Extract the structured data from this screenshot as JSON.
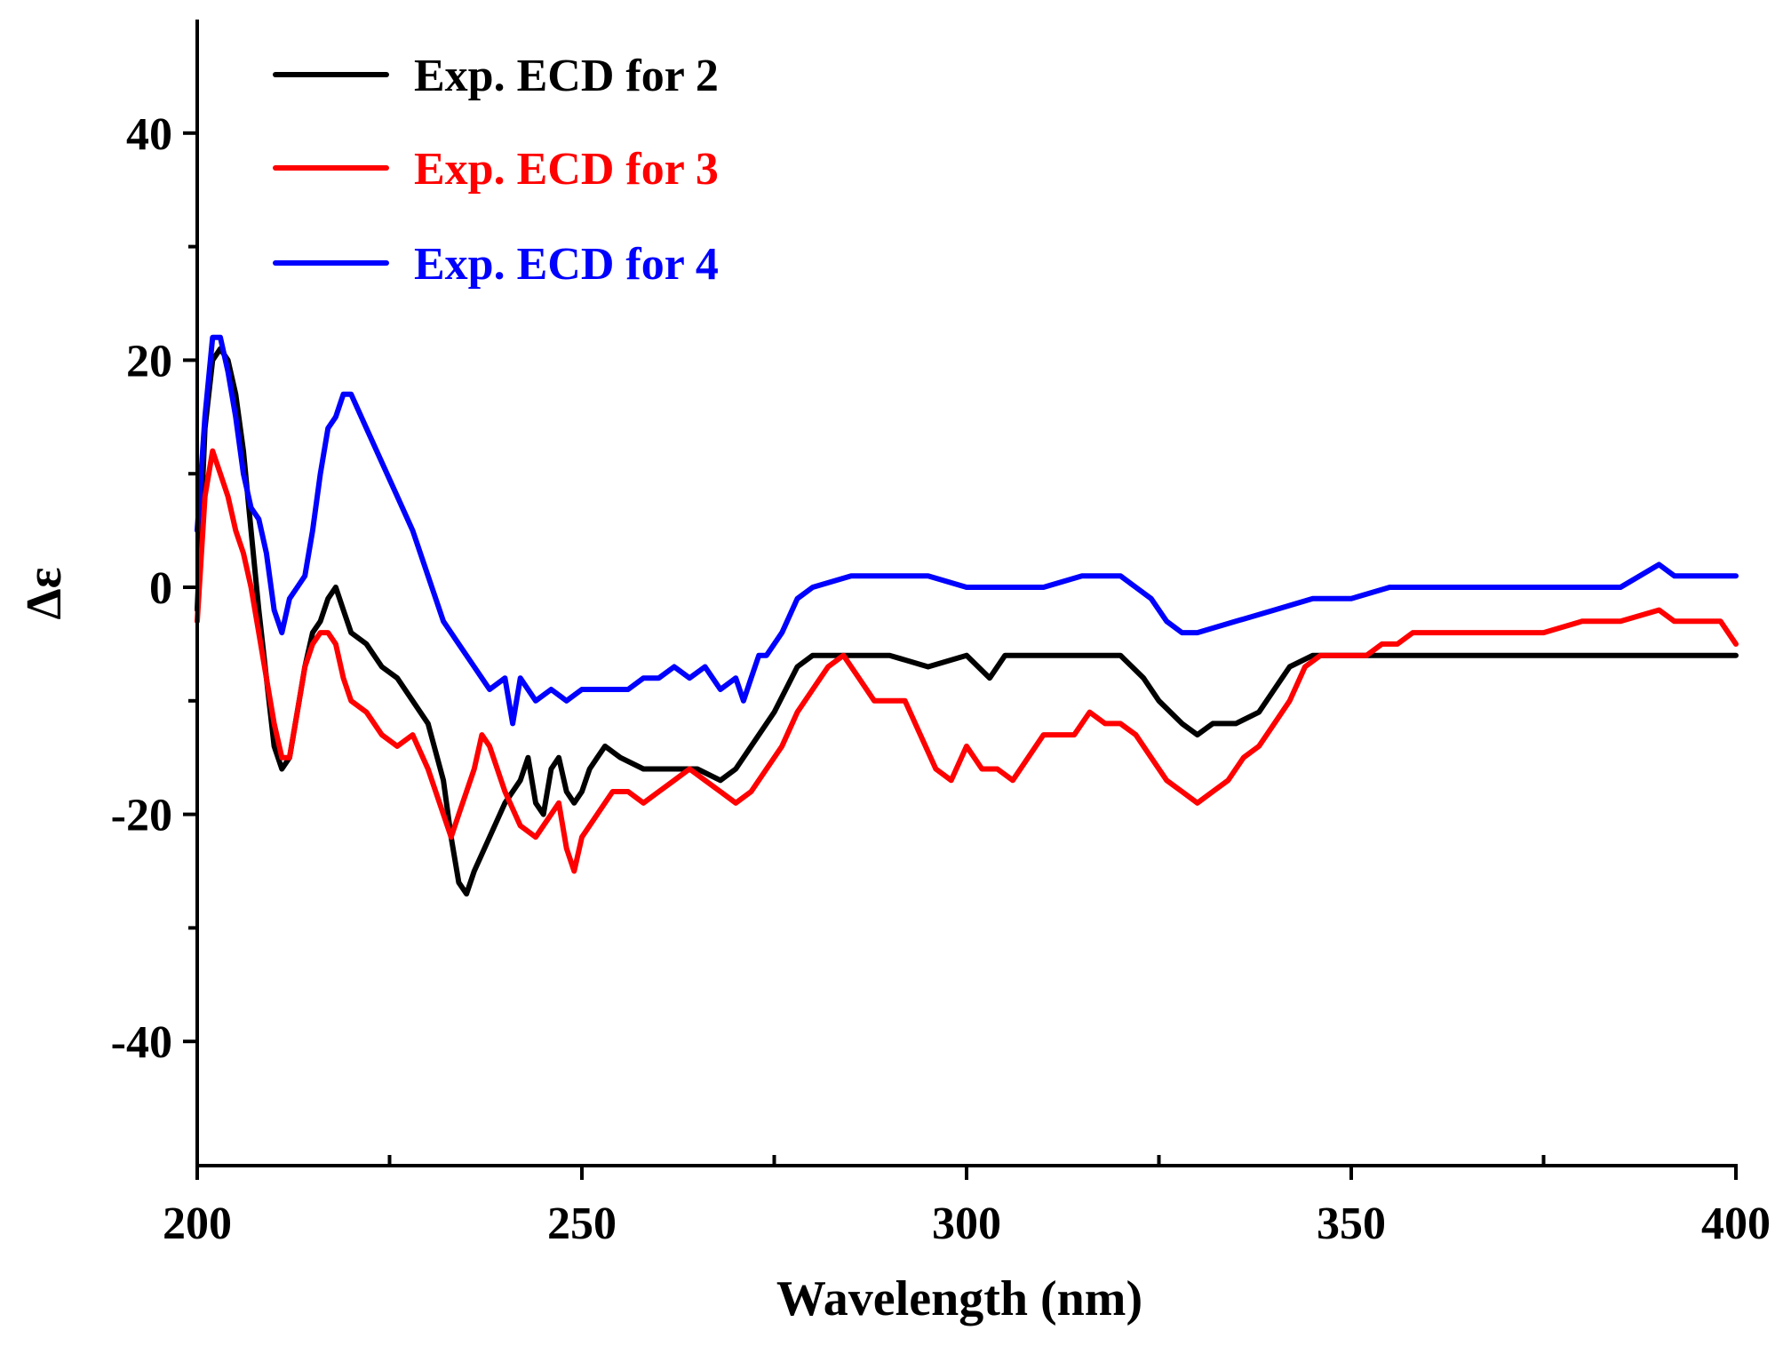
{
  "chart_data": {
    "type": "line",
    "title": "",
    "xlabel": "Wavelength (nm)",
    "ylabel": "Δε",
    "xlim": [
      200,
      400
    ],
    "ylim": [
      -50,
      50
    ],
    "xticks": [
      200,
      250,
      300,
      350,
      400
    ],
    "xticks_minor": [
      225,
      275,
      325,
      375
    ],
    "yticks": [
      -40,
      -20,
      0,
      20,
      40
    ],
    "yticks_minor": [
      -30,
      -10,
      10,
      30
    ],
    "x_tick_labels": [
      "200",
      "250",
      "300",
      "350",
      "400"
    ],
    "y_tick_labels": [
      "-40",
      "-20",
      "0",
      "20",
      "40"
    ],
    "grid": false,
    "legend_position": "top-left",
    "series": [
      {
        "name": "Exp. ECD for 2",
        "color": "#000000",
        "points": [
          [
            200,
            -2
          ],
          [
            201,
            14
          ],
          [
            202,
            20
          ],
          [
            203,
            21
          ],
          [
            204,
            20
          ],
          [
            205,
            17
          ],
          [
            206,
            12
          ],
          [
            207,
            5
          ],
          [
            208,
            -2
          ],
          [
            209,
            -8
          ],
          [
            210,
            -14
          ],
          [
            211,
            -16
          ],
          [
            212,
            -15
          ],
          [
            213,
            -11
          ],
          [
            214,
            -7
          ],
          [
            215,
            -4
          ],
          [
            216,
            -3
          ],
          [
            217,
            -1
          ],
          [
            218,
            0
          ],
          [
            219,
            -2
          ],
          [
            220,
            -4
          ],
          [
            222,
            -5
          ],
          [
            224,
            -7
          ],
          [
            226,
            -8
          ],
          [
            228,
            -10
          ],
          [
            230,
            -12
          ],
          [
            232,
            -17
          ],
          [
            233,
            -22
          ],
          [
            234,
            -26
          ],
          [
            235,
            -27
          ],
          [
            236,
            -25
          ],
          [
            238,
            -22
          ],
          [
            240,
            -19
          ],
          [
            242,
            -17
          ],
          [
            243,
            -15
          ],
          [
            244,
            -19
          ],
          [
            245,
            -20
          ],
          [
            246,
            -16
          ],
          [
            247,
            -15
          ],
          [
            248,
            -18
          ],
          [
            249,
            -19
          ],
          [
            250,
            -18
          ],
          [
            251,
            -16
          ],
          [
            252,
            -15
          ],
          [
            253,
            -14
          ],
          [
            255,
            -15
          ],
          [
            258,
            -16
          ],
          [
            260,
            -16
          ],
          [
            262,
            -16
          ],
          [
            265,
            -16
          ],
          [
            268,
            -17
          ],
          [
            270,
            -16
          ],
          [
            272,
            -14
          ],
          [
            275,
            -11
          ],
          [
            278,
            -7
          ],
          [
            280,
            -6
          ],
          [
            285,
            -6
          ],
          [
            290,
            -6
          ],
          [
            295,
            -7
          ],
          [
            300,
            -6
          ],
          [
            303,
            -8
          ],
          [
            305,
            -6
          ],
          [
            310,
            -6
          ],
          [
            315,
            -6
          ],
          [
            320,
            -6
          ],
          [
            323,
            -8
          ],
          [
            325,
            -10
          ],
          [
            328,
            -12
          ],
          [
            330,
            -13
          ],
          [
            332,
            -12
          ],
          [
            335,
            -12
          ],
          [
            338,
            -11
          ],
          [
            340,
            -9
          ],
          [
            342,
            -7
          ],
          [
            345,
            -6
          ],
          [
            350,
            -6
          ],
          [
            355,
            -6
          ],
          [
            360,
            -6
          ],
          [
            365,
            -6
          ],
          [
            370,
            -6
          ],
          [
            375,
            -6
          ],
          [
            380,
            -6
          ],
          [
            385,
            -6
          ],
          [
            390,
            -6
          ],
          [
            395,
            -6
          ],
          [
            400,
            -6
          ]
        ]
      },
      {
        "name": "Exp. ECD for 3",
        "color": "#ff0000",
        "points": [
          [
            200,
            -3
          ],
          [
            201,
            8
          ],
          [
            202,
            12
          ],
          [
            203,
            10
          ],
          [
            204,
            8
          ],
          [
            205,
            5
          ],
          [
            206,
            3
          ],
          [
            207,
            0
          ],
          [
            208,
            -4
          ],
          [
            209,
            -8
          ],
          [
            210,
            -12
          ],
          [
            211,
            -15
          ],
          [
            212,
            -15
          ],
          [
            213,
            -11
          ],
          [
            214,
            -7
          ],
          [
            215,
            -5
          ],
          [
            216,
            -4
          ],
          [
            217,
            -4
          ],
          [
            218,
            -5
          ],
          [
            219,
            -8
          ],
          [
            220,
            -10
          ],
          [
            222,
            -11
          ],
          [
            224,
            -13
          ],
          [
            226,
            -14
          ],
          [
            228,
            -13
          ],
          [
            230,
            -16
          ],
          [
            232,
            -20
          ],
          [
            233,
            -22
          ],
          [
            234,
            -20
          ],
          [
            236,
            -16
          ],
          [
            237,
            -13
          ],
          [
            238,
            -14
          ],
          [
            240,
            -18
          ],
          [
            242,
            -21
          ],
          [
            244,
            -22
          ],
          [
            246,
            -20
          ],
          [
            247,
            -19
          ],
          [
            248,
            -23
          ],
          [
            249,
            -25
          ],
          [
            250,
            -22
          ],
          [
            252,
            -20
          ],
          [
            254,
            -18
          ],
          [
            256,
            -18
          ],
          [
            258,
            -19
          ],
          [
            260,
            -18
          ],
          [
            262,
            -17
          ],
          [
            264,
            -16
          ],
          [
            266,
            -17
          ],
          [
            268,
            -18
          ],
          [
            270,
            -19
          ],
          [
            272,
            -18
          ],
          [
            274,
            -16
          ],
          [
            276,
            -14
          ],
          [
            278,
            -11
          ],
          [
            280,
            -9
          ],
          [
            282,
            -7
          ],
          [
            284,
            -6
          ],
          [
            286,
            -8
          ],
          [
            288,
            -10
          ],
          [
            290,
            -10
          ],
          [
            292,
            -10
          ],
          [
            294,
            -13
          ],
          [
            296,
            -16
          ],
          [
            298,
            -17
          ],
          [
            300,
            -14
          ],
          [
            302,
            -16
          ],
          [
            304,
            -16
          ],
          [
            306,
            -17
          ],
          [
            308,
            -15
          ],
          [
            310,
            -13
          ],
          [
            312,
            -13
          ],
          [
            314,
            -13
          ],
          [
            316,
            -11
          ],
          [
            318,
            -12
          ],
          [
            320,
            -12
          ],
          [
            322,
            -13
          ],
          [
            324,
            -15
          ],
          [
            326,
            -17
          ],
          [
            328,
            -18
          ],
          [
            330,
            -19
          ],
          [
            332,
            -18
          ],
          [
            334,
            -17
          ],
          [
            336,
            -15
          ],
          [
            338,
            -14
          ],
          [
            340,
            -12
          ],
          [
            342,
            -10
          ],
          [
            344,
            -7
          ],
          [
            346,
            -6
          ],
          [
            348,
            -6
          ],
          [
            350,
            -6
          ],
          [
            352,
            -6
          ],
          [
            354,
            -5
          ],
          [
            356,
            -5
          ],
          [
            358,
            -4
          ],
          [
            360,
            -4
          ],
          [
            365,
            -4
          ],
          [
            370,
            -4
          ],
          [
            375,
            -4
          ],
          [
            380,
            -3
          ],
          [
            385,
            -3
          ],
          [
            390,
            -2
          ],
          [
            392,
            -3
          ],
          [
            395,
            -3
          ],
          [
            398,
            -3
          ],
          [
            400,
            -5
          ]
        ]
      },
      {
        "name": "Exp. ECD for 4",
        "color": "#0000ff",
        "points": [
          [
            200,
            5
          ],
          [
            201,
            15
          ],
          [
            202,
            22
          ],
          [
            203,
            22
          ],
          [
            204,
            19
          ],
          [
            205,
            15
          ],
          [
            206,
            10
          ],
          [
            207,
            7
          ],
          [
            208,
            6
          ],
          [
            209,
            3
          ],
          [
            210,
            -2
          ],
          [
            211,
            -4
          ],
          [
            212,
            -1
          ],
          [
            213,
            0
          ],
          [
            214,
            1
          ],
          [
            215,
            5
          ],
          [
            216,
            10
          ],
          [
            217,
            14
          ],
          [
            218,
            15
          ],
          [
            219,
            17
          ],
          [
            220,
            17
          ],
          [
            222,
            14
          ],
          [
            224,
            11
          ],
          [
            226,
            8
          ],
          [
            228,
            5
          ],
          [
            230,
            1
          ],
          [
            232,
            -3
          ],
          [
            234,
            -5
          ],
          [
            236,
            -7
          ],
          [
            238,
            -9
          ],
          [
            240,
            -8
          ],
          [
            241,
            -12
          ],
          [
            242,
            -8
          ],
          [
            244,
            -10
          ],
          [
            246,
            -9
          ],
          [
            248,
            -10
          ],
          [
            250,
            -9
          ],
          [
            252,
            -9
          ],
          [
            254,
            -9
          ],
          [
            256,
            -9
          ],
          [
            258,
            -8
          ],
          [
            260,
            -8
          ],
          [
            262,
            -7
          ],
          [
            264,
            -8
          ],
          [
            266,
            -7
          ],
          [
            268,
            -9
          ],
          [
            270,
            -8
          ],
          [
            271,
            -10
          ],
          [
            272,
            -8
          ],
          [
            273,
            -6
          ],
          [
            274,
            -6
          ],
          [
            276,
            -4
          ],
          [
            278,
            -1
          ],
          [
            280,
            0
          ],
          [
            285,
            1
          ],
          [
            290,
            1
          ],
          [
            295,
            1
          ],
          [
            300,
            0
          ],
          [
            305,
            0
          ],
          [
            310,
            0
          ],
          [
            315,
            1
          ],
          [
            320,
            1
          ],
          [
            322,
            0
          ],
          [
            324,
            -1
          ],
          [
            326,
            -3
          ],
          [
            328,
            -4
          ],
          [
            330,
            -4
          ],
          [
            335,
            -3
          ],
          [
            340,
            -2
          ],
          [
            345,
            -1
          ],
          [
            350,
            -1
          ],
          [
            355,
            0
          ],
          [
            360,
            0
          ],
          [
            365,
            0
          ],
          [
            370,
            0
          ],
          [
            375,
            0
          ],
          [
            380,
            0
          ],
          [
            385,
            0
          ],
          [
            390,
            2
          ],
          [
            392,
            1
          ],
          [
            395,
            1
          ],
          [
            400,
            1
          ]
        ]
      }
    ]
  }
}
